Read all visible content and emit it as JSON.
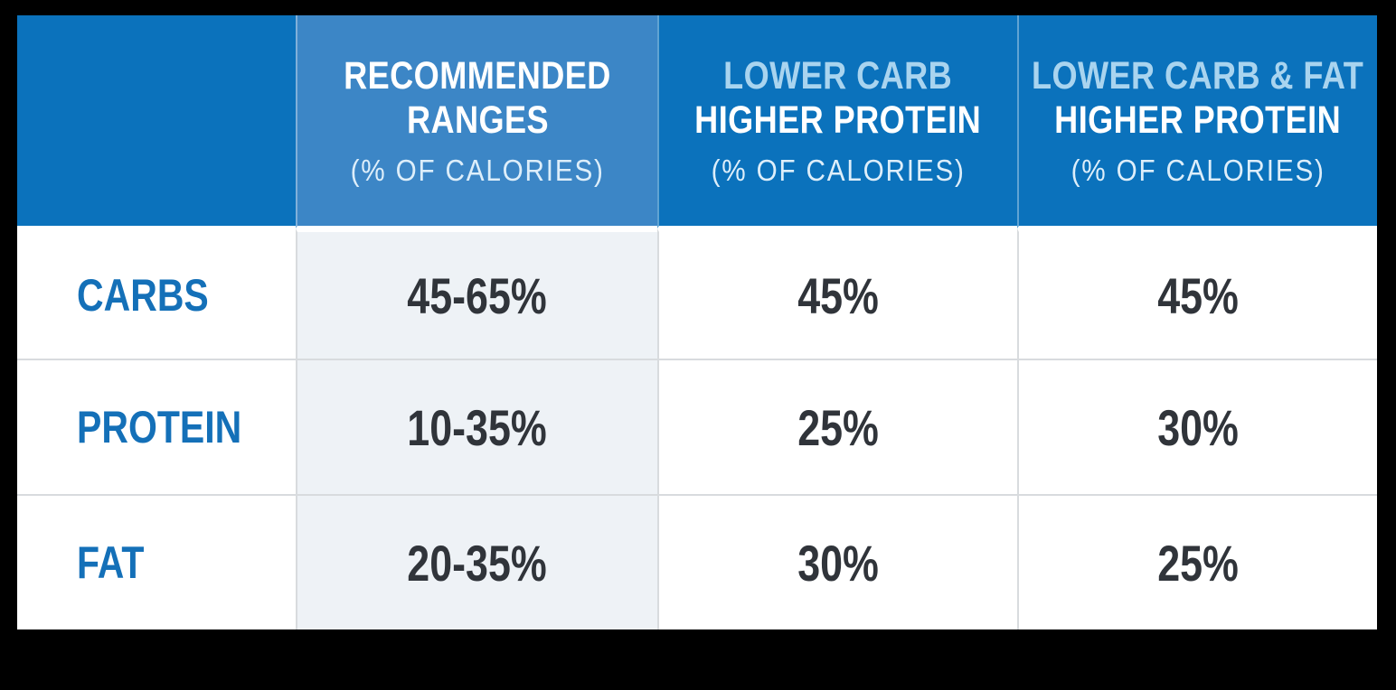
{
  "colors": {
    "frame_black": "#000000",
    "header_blue": "#0b72bc",
    "header_blue_light": "#3c86c6",
    "header_light_blue_text": "#a9d4ef",
    "header_sub_text": "#ddeefa",
    "row_label_blue": "#1470b8",
    "value_text": "#30343a",
    "recommended_column_bg": "#eef2f6",
    "grid_line": "#d8dbde"
  },
  "table": {
    "header": {
      "recommended": {
        "line1": "RECOMMENDED",
        "line2": "RANGES",
        "sub": "(% OF CALORIES)"
      },
      "lower_carb": {
        "line1": "LOWER CARB",
        "line2": "HIGHER PROTEIN",
        "sub": "(% OF CALORIES)"
      },
      "lower_carb_fat": {
        "line1": "LOWER CARB & FAT",
        "line2": "HIGHER PROTEIN",
        "sub": "(% OF CALORIES)"
      }
    },
    "rows": [
      {
        "label": "CARBS",
        "values": [
          "45-65%",
          "45%",
          "45%"
        ]
      },
      {
        "label": "PROTEIN",
        "values": [
          "10-35%",
          "25%",
          "30%"
        ]
      },
      {
        "label": "FAT",
        "values": [
          "20-35%",
          "30%",
          "25%"
        ]
      }
    ]
  },
  "chart_data": {
    "type": "table",
    "columns": [
      "",
      "RECOMMENDED RANGES (% OF CALORIES)",
      "LOWER CARB HIGHER PROTEIN (% OF CALORIES)",
      "LOWER CARB & FAT HIGHER PROTEIN (% OF CALORIES)"
    ],
    "rows": [
      [
        "CARBS",
        "45-65%",
        "45%",
        "45%"
      ],
      [
        "PROTEIN",
        "10-35%",
        "25%",
        "30%"
      ],
      [
        "FAT",
        "20-35%",
        "30%",
        "25%"
      ]
    ],
    "layout_hints": {
      "header_style": "blue banner, white and light-blue condensed caps",
      "highlight_column": "RECOMMENDED RANGES column has lighter blue header and pale blue body",
      "grid": "thin light gray row/column separators, black outer frame"
    }
  }
}
